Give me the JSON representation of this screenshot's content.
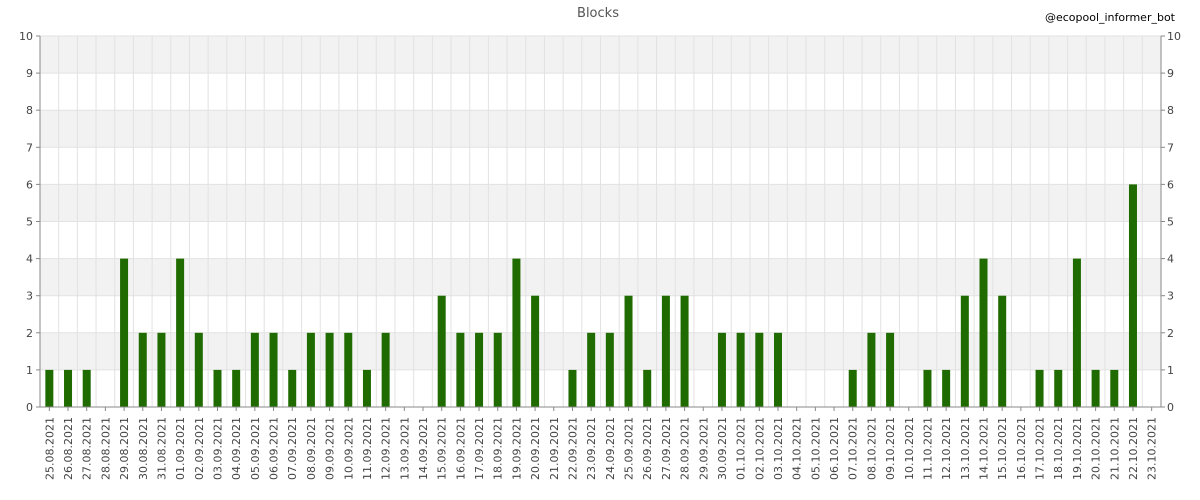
{
  "chart_data": {
    "type": "bar",
    "title": "Blocks",
    "watermark": "@ecopool_informer_bot",
    "xlabel": "",
    "ylabel": "",
    "ylim": [
      0,
      10
    ],
    "yticks": [
      "0",
      "1",
      "2",
      "3",
      "4",
      "5",
      "6",
      "7",
      "8",
      "9",
      "10"
    ],
    "grid": true,
    "colors": {
      "bar": "#1f6b00",
      "band": "#f2f2f2",
      "grid": "#e2e2e2",
      "axis": "#888888"
    },
    "categories": [
      "25.08.2021",
      "26.08.2021",
      "27.08.2021",
      "28.08.2021",
      "29.08.2021",
      "30.08.2021",
      "31.08.2021",
      "01.09.2021",
      "02.09.2021",
      "03.09.2021",
      "04.09.2021",
      "05.09.2021",
      "06.09.2021",
      "07.09.2021",
      "08.09.2021",
      "09.09.2021",
      "10.09.2021",
      "11.09.2021",
      "12.09.2021",
      "13.09.2021",
      "14.09.2021",
      "15.09.2021",
      "16.09.2021",
      "17.09.2021",
      "18.09.2021",
      "19.09.2021",
      "20.09.2021",
      "21.09.2021",
      "22.09.2021",
      "23.09.2021",
      "24.09.2021",
      "25.09.2021",
      "26.09.2021",
      "27.09.2021",
      "28.09.2021",
      "29.09.2021",
      "30.09.2021",
      "01.10.2021",
      "02.10.2021",
      "03.10.2021",
      "04.10.2021",
      "05.10.2021",
      "06.10.2021",
      "07.10.2021",
      "08.10.2021",
      "09.10.2021",
      "10.10.2021",
      "11.10.2021",
      "12.10.2021",
      "13.10.2021",
      "14.10.2021",
      "15.10.2021",
      "16.10.2021",
      "17.10.2021",
      "18.10.2021",
      "19.10.2021",
      "20.10.2021",
      "21.10.2021",
      "22.10.2021",
      "23.10.2021"
    ],
    "values": [
      1,
      1,
      1,
      0,
      4,
      2,
      2,
      4,
      2,
      1,
      1,
      2,
      2,
      1,
      2,
      2,
      2,
      1,
      2,
      0,
      0,
      3,
      2,
      2,
      2,
      4,
      3,
      0,
      1,
      2,
      2,
      3,
      1,
      3,
      3,
      0,
      2,
      2,
      2,
      2,
      0,
      0,
      0,
      1,
      2,
      2,
      0,
      1,
      1,
      3,
      4,
      3,
      0,
      1,
      1,
      4,
      1,
      1,
      6,
      0
    ]
  }
}
